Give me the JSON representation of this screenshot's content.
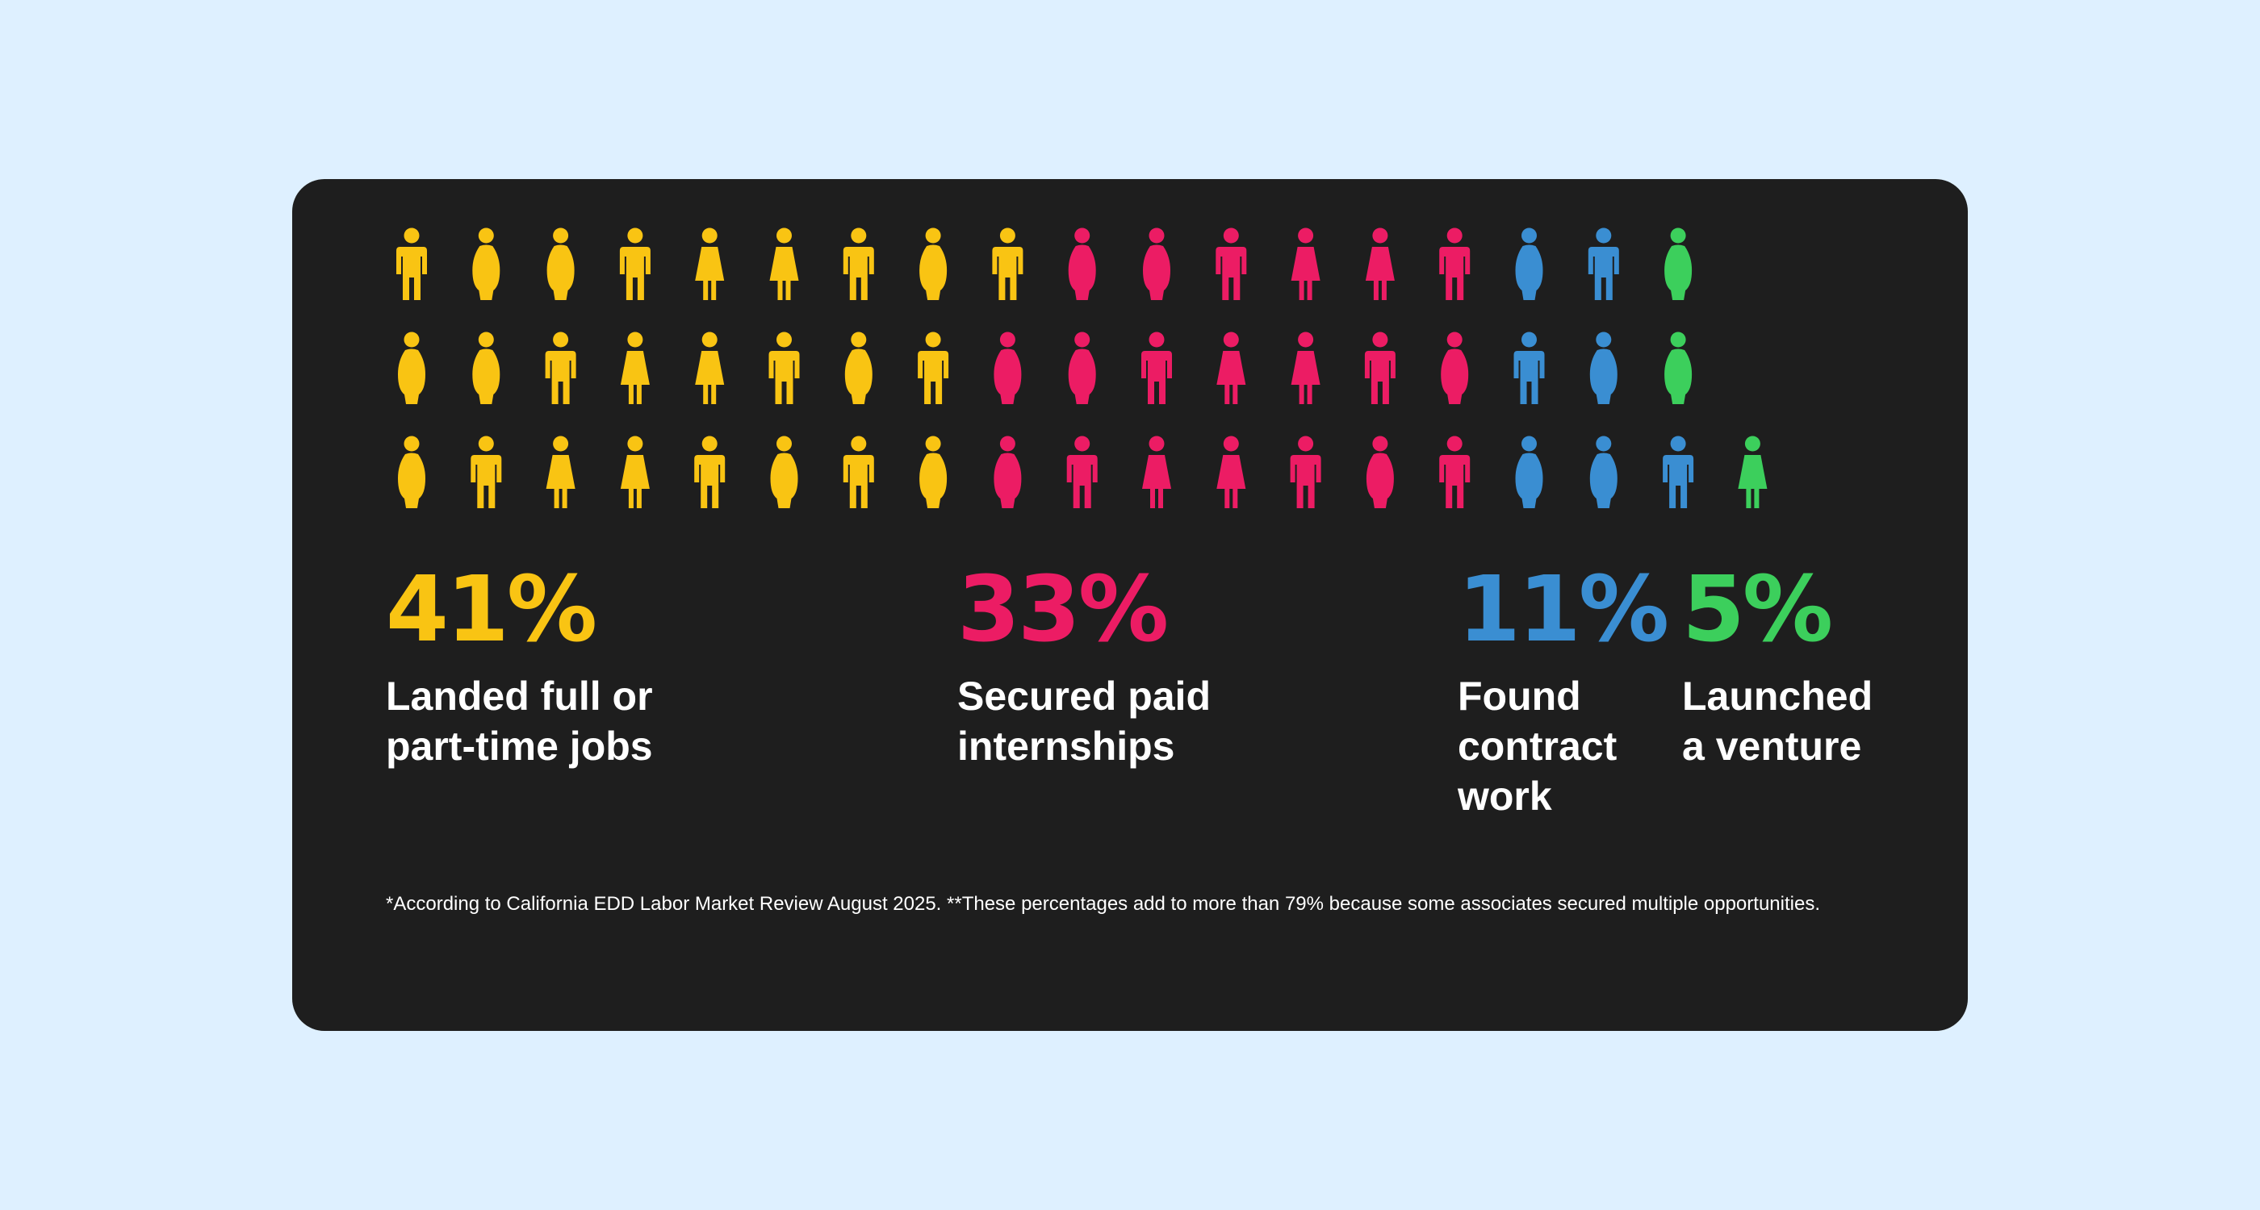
{
  "colors": {
    "background": "#DEF0FF",
    "card": "#1E1E1E"
  },
  "chart_data": {
    "type": "pictogram",
    "rows": [
      [
        "yellow",
        "yellow",
        "yellow",
        "yellow",
        "yellow",
        "yellow",
        "yellow",
        "yellow",
        "yellow",
        "pink",
        "pink",
        "pink",
        "pink",
        "pink",
        "pink",
        "blue",
        "blue",
        "green"
      ],
      [
        "yellow",
        "yellow",
        "yellow",
        "yellow",
        "yellow",
        "yellow",
        "yellow",
        "yellow",
        "pink",
        "pink",
        "pink",
        "pink",
        "pink",
        "pink",
        "pink",
        "blue",
        "blue",
        "green"
      ],
      [
        "yellow",
        "yellow",
        "yellow",
        "yellow",
        "yellow",
        "yellow",
        "yellow",
        "yellow",
        "pink",
        "pink",
        "pink",
        "pink",
        "pink",
        "pink",
        "pink",
        "blue",
        "blue",
        "blue",
        "green"
      ]
    ],
    "categories": [
      {
        "key": "yellow",
        "color": "#F9C413",
        "value": "41%",
        "label": "Landed full or part-time jobs",
        "label_lines": [
          "Landed full or",
          "part-time jobs"
        ]
      },
      {
        "key": "pink",
        "color": "#EC1C64",
        "value": "33%",
        "label": "Secured paid internships",
        "label_lines": [
          "Secured paid",
          "internships"
        ]
      },
      {
        "key": "blue",
        "color": "#3A8ED2",
        "value": "11%",
        "label": "Found contract work",
        "label_lines": [
          "Found",
          "contract",
          "work"
        ]
      },
      {
        "key": "green",
        "color": "#3CCF5C",
        "value": "5%",
        "label": "Launched a venture",
        "label_lines": [
          "Launched",
          "a venture"
        ]
      }
    ]
  },
  "footnote": "*According to California EDD Labor Market Review August 2025. **These percentages add to more than 79% because some associates secured multiple opportunities."
}
